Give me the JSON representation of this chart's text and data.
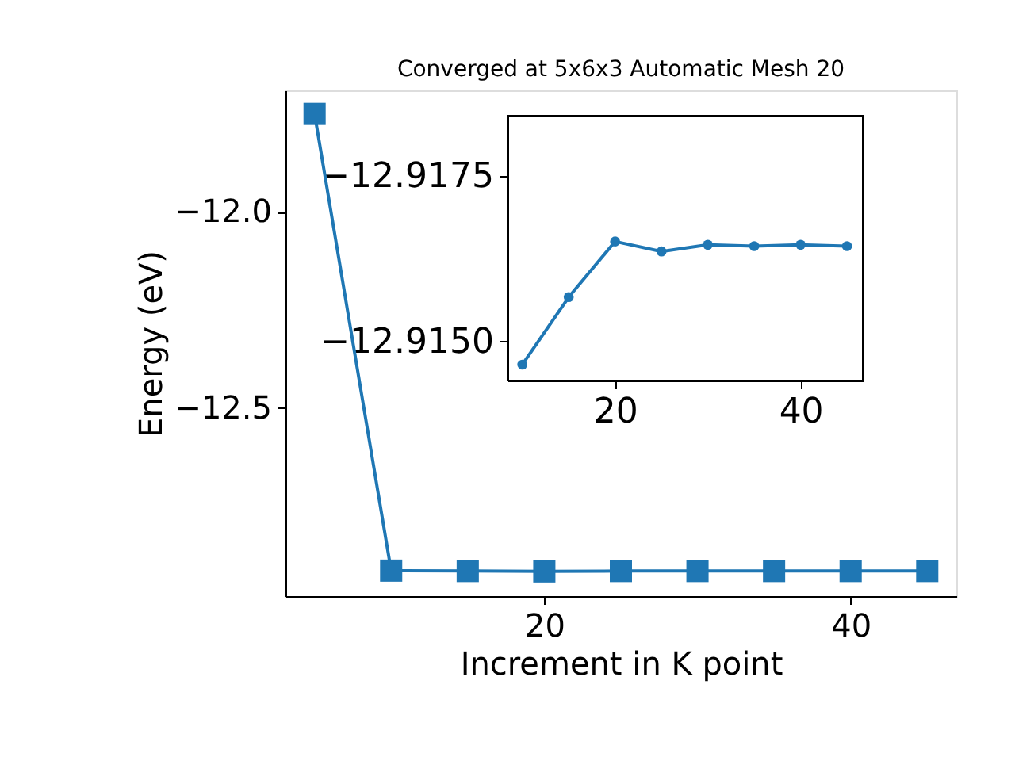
{
  "chart_data": [
    {
      "type": "line",
      "title": "Converged at 5x6x3 Automatic Mesh 20",
      "xlabel": "Increment in K point",
      "ylabel": "Energy (eV)",
      "marker": "square",
      "line_style": "solid",
      "grid": false,
      "x": [
        5,
        10,
        15,
        20,
        25,
        30,
        35,
        40,
        45
      ],
      "series": [
        {
          "color": "#1f77b4",
          "values": [
            -11.75,
            -12.915,
            -12.916,
            -12.917,
            -12.916,
            -12.916,
            -12.916,
            -12.916,
            -12.916
          ]
        }
      ],
      "xlim": [
        3.1,
        46.9
      ],
      "xticks": [
        20,
        40
      ],
      "ylim": [
        -12.98,
        -11.69
      ],
      "yticks": [
        {
          "value": -12.0,
          "label": "−12.0"
        },
        {
          "value": -12.5,
          "label": "−12.5"
        }
      ]
    },
    {
      "type": "line",
      "marker": "circle",
      "line_style": "solid",
      "grid": false,
      "x": [
        10,
        15,
        20,
        25,
        30,
        35,
        40,
        45
      ],
      "series": [
        {
          "color": "#1f77b4",
          "values": [
            -12.91464,
            -12.91566,
            -12.9165,
            -12.91635,
            -12.91645,
            -12.91643,
            -12.91645,
            -12.91643
          ]
        }
      ],
      "xlim": [
        8.4,
        46.7
      ],
      "xticks": [
        20,
        40
      ],
      "ylim": [
        -12.9144,
        -12.9184
      ],
      "yticks": [
        {
          "value": -12.9175,
          "label": "−12.9175"
        },
        {
          "value": -12.915,
          "label": "−12.9150"
        }
      ]
    }
  ]
}
